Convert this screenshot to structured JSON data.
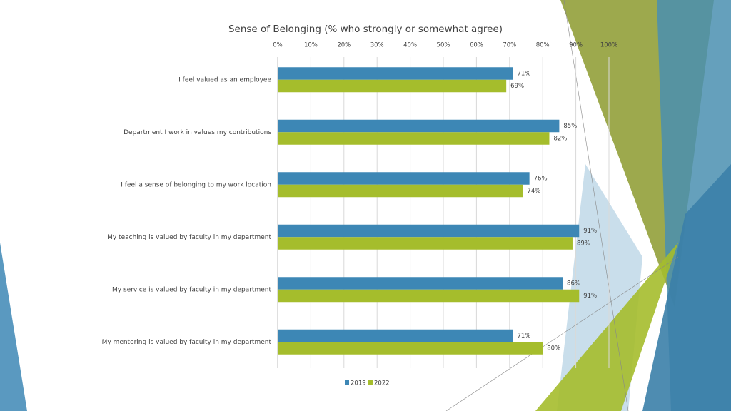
{
  "chart_data": {
    "type": "bar",
    "title": "Sense of Belonging (% who strongly or somewhat agree)",
    "categories": [
      "I feel valued as an employee",
      "Department I work in values my contributions",
      "I feel a sense of belonging to my work location",
      "My teaching is valued by faculty in my department",
      "My service is valued by faculty in my department",
      "My mentoring is valued by faculty in my department"
    ],
    "series": [
      {
        "name": "2019",
        "color": "#3d87b5",
        "values": [
          71,
          85,
          76,
          91,
          86,
          71
        ],
        "value_labels": [
          "71%",
          "85%",
          "76%",
          "91%",
          "86%",
          "71%"
        ]
      },
      {
        "name": "2022",
        "color": "#a5bd2c",
        "values": [
          69,
          82,
          74,
          89,
          91,
          80
        ],
        "value_labels": [
          "69%",
          "82%",
          "74%",
          "89%",
          "91%",
          "80%"
        ]
      }
    ],
    "xlim": [
      0,
      100
    ],
    "xticks": [
      {
        "value": 0,
        "label": "0%"
      },
      {
        "value": 10,
        "label": "10%"
      },
      {
        "value": 20,
        "label": "20%"
      },
      {
        "value": 30,
        "label": "30%"
      },
      {
        "value": 40,
        "label": "40%"
      },
      {
        "value": 50,
        "label": "50%"
      },
      {
        "value": 60,
        "label": "60%"
      },
      {
        "value": 70,
        "label": "70%"
      },
      {
        "value": 80,
        "label": "80%"
      },
      {
        "value": 90,
        "label": "90%"
      },
      {
        "value": 100,
        "label": "100%"
      }
    ],
    "grid": true,
    "legend": "bottom"
  }
}
